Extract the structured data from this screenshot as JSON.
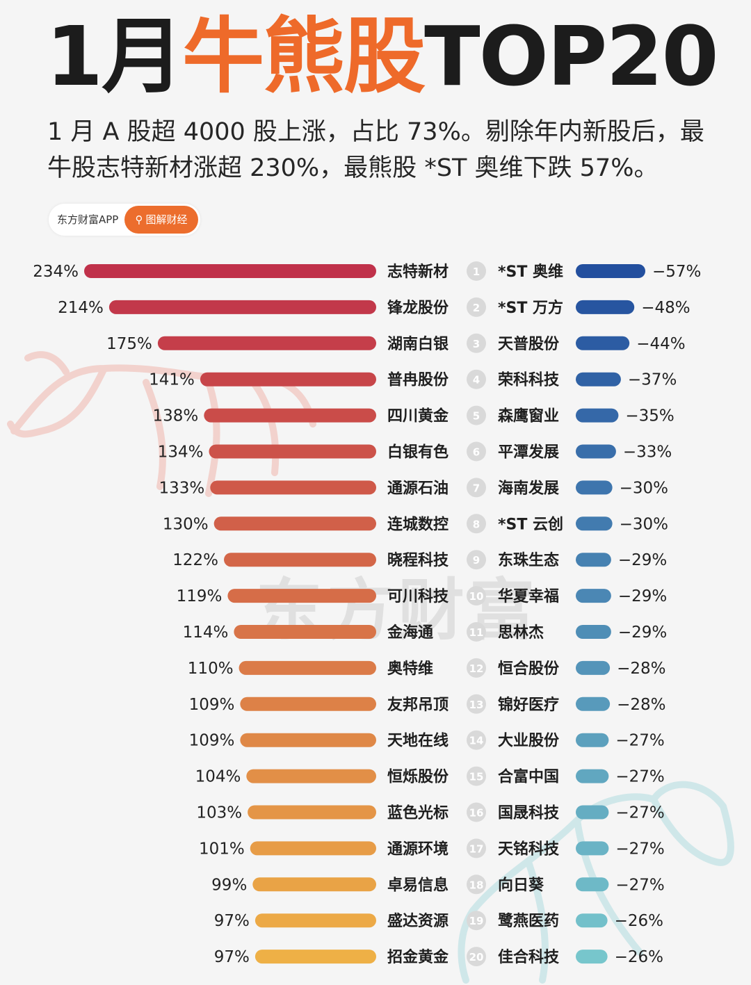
{
  "header": {
    "title_pre": "1月",
    "title_highlight": "牛熊股",
    "title_post": "TOP20",
    "subtitle": "1 月 A 股超 4000 股上涨，占比 73%。剔除年内新股后，最牛股志特新材涨超 230%，最熊股 *ST 奥维下跌 57%。"
  },
  "source_badge": {
    "app_name": "东方财富APP",
    "button_label": "图解财经",
    "button_icon": "search-icon"
  },
  "watermark": {
    "text": "东方财富"
  },
  "colors": {
    "accent_orange": "#ee6a2a",
    "bull_bar_top": "#c0314a",
    "bull_bar_bottom": "#eeb046",
    "bear_bar_top": "#234f9e",
    "bear_bar_bottom": "#77c6cc"
  },
  "chart_data": {
    "type": "bar",
    "title": "1月牛熊股TOP20",
    "ranks": [
      1,
      2,
      3,
      4,
      5,
      6,
      7,
      8,
      9,
      10,
      11,
      12,
      13,
      14,
      15,
      16,
      17,
      18,
      19,
      20
    ],
    "series": [
      {
        "name": "牛股",
        "categories": [
          "志特新材",
          "锋龙股份",
          "湖南白银",
          "普冉股份",
          "四川黄金",
          "白银有色",
          "通源石油",
          "连城数控",
          "晓程科技",
          "可川科技",
          "金海通",
          "奥特维",
          "友邦吊顶",
          "天地在线",
          "恒烁股份",
          "蓝色光标",
          "通源环境",
          "卓易信息",
          "盛达资源",
          "招金黄金"
        ],
        "values": [
          234,
          214,
          175,
          141,
          138,
          134,
          133,
          130,
          122,
          119,
          114,
          110,
          109,
          109,
          104,
          103,
          101,
          99,
          97,
          97
        ],
        "labels": [
          "234%",
          "214%",
          "175%",
          "141%",
          "138%",
          "134%",
          "133%",
          "130%",
          "122%",
          "119%",
          "114%",
          "110%",
          "109%",
          "109%",
          "104%",
          "103%",
          "101%",
          "99%",
          "97%",
          "97%"
        ]
      },
      {
        "name": "熊股",
        "categories": [
          "*ST 奥维",
          "*ST 万方",
          "天普股份",
          "荣科科技",
          "森鹰窗业",
          "平潭发展",
          "海南发展",
          "*ST 云创",
          "东珠生态",
          "华夏幸福",
          "思林杰",
          "恒合股份",
          "锦好医疗",
          "大业股份",
          "合富中国",
          "国晟科技",
          "天铭科技",
          "向日葵",
          "鹭燕医药",
          "佳合科技"
        ],
        "values": [
          -57,
          -48,
          -44,
          -37,
          -35,
          -33,
          -30,
          -30,
          -29,
          -29,
          -29,
          -28,
          -28,
          -27,
          -27,
          -27,
          -27,
          -27,
          -26,
          -26
        ],
        "labels": [
          "−57%",
          "−48%",
          "−44%",
          "−37%",
          "−35%",
          "−33%",
          "−30%",
          "−30%",
          "−29%",
          "−29%",
          "−29%",
          "−28%",
          "−28%",
          "−27%",
          "−27%",
          "−27%",
          "−27%",
          "−27%",
          "−26%",
          "−26%"
        ]
      }
    ]
  }
}
